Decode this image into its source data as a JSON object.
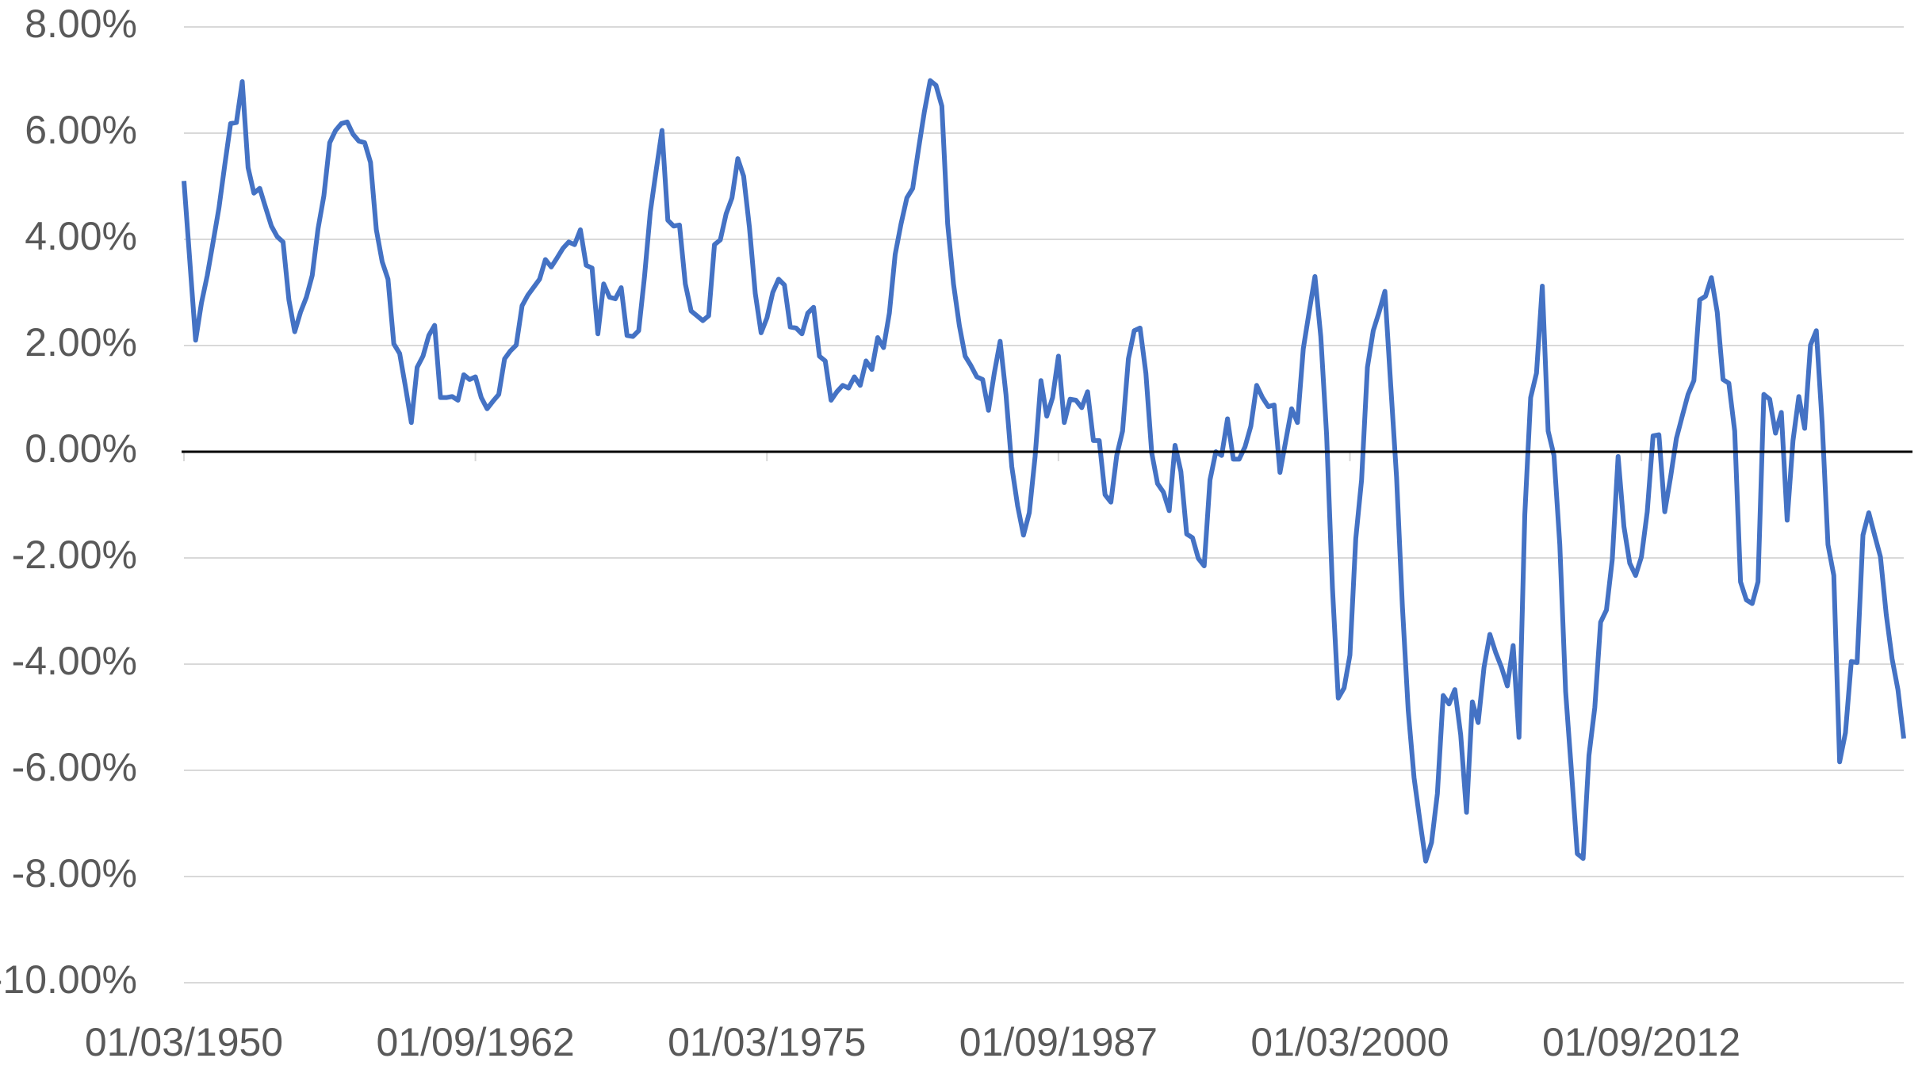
{
  "chart_data": {
    "type": "line",
    "categories": [
      "01/03/1950",
      null,
      null,
      null,
      null,
      null,
      null,
      null,
      null,
      null,
      null,
      null,
      null,
      null,
      null,
      null,
      null,
      null,
      null,
      null,
      null,
      null,
      null,
      null,
      null,
      null,
      null,
      null,
      null,
      null,
      null,
      null,
      null,
      null,
      null,
      null,
      null,
      null,
      null,
      null,
      null,
      null,
      null,
      null,
      null,
      null,
      null,
      null,
      null,
      null,
      "01/09/1962",
      null,
      null,
      null,
      null,
      null,
      null,
      null,
      null,
      null,
      null,
      null,
      null,
      null,
      null,
      null,
      null,
      null,
      null,
      null,
      null,
      null,
      null,
      null,
      null,
      null,
      null,
      null,
      null,
      null,
      null,
      null,
      null,
      null,
      null,
      null,
      null,
      null,
      null,
      null,
      null,
      null,
      null,
      null,
      null,
      null,
      null,
      null,
      null,
      null,
      "01/03/1975",
      null,
      null,
      null,
      null,
      null,
      null,
      null,
      null,
      null,
      null,
      null,
      null,
      null,
      null,
      null,
      null,
      null,
      null,
      null,
      null,
      null,
      null,
      null,
      null,
      null,
      null,
      null,
      null,
      null,
      null,
      null,
      null,
      null,
      null,
      null,
      null,
      null,
      null,
      null,
      null,
      null,
      null,
      null,
      null,
      null,
      null,
      null,
      null,
      null,
      "01/09/1987",
      null,
      null,
      null,
      null,
      null,
      null,
      null,
      null,
      null,
      null,
      null,
      null,
      null,
      null,
      null,
      null,
      null,
      null,
      null,
      null,
      null,
      null,
      null,
      null,
      null,
      null,
      null,
      null,
      null,
      null,
      null,
      null,
      null,
      null,
      null,
      null,
      null,
      null,
      null,
      null,
      null,
      null,
      null,
      null,
      null,
      null,
      null,
      null,
      null,
      "01/03/2000",
      null,
      null,
      null,
      null,
      null,
      null,
      null,
      null,
      null,
      null,
      null,
      null,
      null,
      null,
      null,
      null,
      null,
      null,
      null,
      null,
      null,
      null,
      null,
      null,
      null,
      null,
      null,
      null,
      null,
      null,
      null,
      null,
      null,
      null,
      null,
      null,
      null,
      null,
      null,
      null,
      null,
      null,
      null,
      null,
      null,
      null,
      null,
      null,
      null,
      "01/09/2012",
      null,
      null,
      null,
      null,
      null,
      null,
      null,
      null,
      null,
      null,
      null,
      null,
      null,
      null,
      null,
      null,
      null,
      null,
      null,
      null,
      null,
      null,
      null,
      null,
      null,
      null,
      null,
      null,
      null,
      null,
      null,
      null,
      null,
      null,
      null,
      null,
      null,
      null,
      null,
      null,
      null,
      null,
      null,
      null,
      null
    ],
    "series": [
      {
        "color": "#4472c4",
        "values": [
          5.1,
          3.6,
          2.1,
          2.8,
          3.32,
          3.95,
          4.59,
          5.4,
          6.18,
          6.2,
          6.97,
          5.35,
          4.87,
          4.96,
          4.6,
          4.25,
          4.05,
          3.95,
          2.86,
          2.26,
          2.63,
          2.91,
          3.32,
          4.2,
          4.82,
          5.82,
          6.05,
          6.18,
          6.21,
          5.98,
          5.85,
          5.82,
          5.45,
          4.18,
          3.58,
          3.25,
          2.03,
          1.85,
          1.22,
          0.55,
          1.59,
          1.8,
          2.19,
          2.38,
          1.02,
          1.02,
          1.04,
          0.97,
          1.45,
          1.36,
          1.41,
          1.02,
          0.81,
          0.95,
          1.08,
          1.75,
          1.9,
          2.01,
          2.75,
          2.95,
          3.1,
          3.25,
          3.62,
          3.48,
          3.65,
          3.83,
          3.95,
          3.9,
          4.18,
          3.51,
          3.46,
          2.22,
          3.16,
          2.91,
          2.88,
          3.09,
          2.19,
          2.17,
          2.28,
          3.3,
          4.52,
          5.3,
          6.05,
          4.36,
          4.25,
          4.27,
          3.16,
          2.65,
          2.56,
          2.47,
          2.56,
          3.9,
          3.99,
          4.48,
          4.78,
          5.52,
          5.19,
          4.22,
          2.98,
          2.24,
          2.52,
          3.0,
          3.25,
          3.14,
          2.35,
          2.33,
          2.22,
          2.61,
          2.72,
          1.8,
          1.71,
          0.97,
          1.13,
          1.25,
          1.2,
          1.41,
          1.25,
          1.71,
          1.55,
          2.15,
          1.96,
          2.61,
          3.72,
          4.29,
          4.78,
          4.96,
          5.7,
          6.4,
          6.99,
          6.9,
          6.51,
          4.29,
          3.16,
          2.38,
          1.8,
          1.62,
          1.41,
          1.36,
          0.78,
          1.48,
          2.08,
          1.08,
          -0.28,
          -1.02,
          -1.57,
          -1.15,
          -0.09,
          1.34,
          0.67,
          1.02,
          1.8,
          0.55,
          0.99,
          0.97,
          0.83,
          1.13,
          0.21,
          0.21,
          -0.81,
          -0.95,
          -0.07,
          0.39,
          1.75,
          2.28,
          2.33,
          1.48,
          -0.02,
          -0.6,
          -0.76,
          -1.11,
          0.12,
          -0.37,
          -1.55,
          -1.62,
          -2.01,
          -2.15,
          -0.53,
          0.0,
          -0.07,
          0.62,
          -0.14,
          -0.14,
          0.09,
          0.48,
          1.25,
          1.02,
          0.85,
          0.88,
          -0.39,
          0.21,
          0.81,
          0.55,
          1.94,
          2.63,
          3.3,
          2.17,
          0.32,
          -2.56,
          -4.64,
          -4.45,
          -3.83,
          -1.64,
          -0.53,
          1.59,
          2.28,
          2.63,
          3.02,
          1.25,
          -0.48,
          -2.91,
          -4.87,
          -6.14,
          -6.95,
          -7.71,
          -7.36,
          -6.44,
          -4.59,
          -4.75,
          -4.48,
          -5.33,
          -6.79,
          -4.71,
          -5.1,
          -4.06,
          -3.44,
          -3.78,
          -4.06,
          -4.41,
          -3.65,
          -5.38,
          -1.18,
          1.02,
          1.48,
          3.12,
          0.39,
          -0.07,
          -1.75,
          -4.52,
          -6.02,
          -7.57,
          -7.66,
          -5.72,
          -4.82,
          -3.21,
          -2.98,
          -2.03,
          -0.09,
          -1.41,
          -2.1,
          -2.33,
          -1.98,
          -1.13,
          0.3,
          0.32,
          -1.13,
          -0.48,
          0.25,
          0.67,
          1.08,
          1.34,
          2.86,
          2.93,
          3.28,
          2.63,
          1.36,
          1.29,
          0.39,
          -2.45,
          -2.79,
          -2.86,
          -2.45,
          1.08,
          0.99,
          0.35,
          0.74,
          -1.29,
          0.21,
          1.04,
          0.44,
          2.01,
          2.28,
          0.55,
          -1.75,
          -2.33,
          -5.84,
          -5.29,
          -3.95,
          -3.97,
          -1.57,
          -1.15,
          -1.57,
          -1.98,
          -3.07,
          -3.9,
          -4.48,
          -5.4
        ]
      }
    ],
    "ylim": [
      -10,
      8
    ],
    "yticks": [
      {
        "value": -10,
        "label": "-10.00%"
      },
      {
        "value": -8,
        "label": "-8.00%"
      },
      {
        "value": -6,
        "label": "-6.00%"
      },
      {
        "value": -4,
        "label": "-4.00%"
      },
      {
        "value": -2,
        "label": "-2.00%"
      },
      {
        "value": 0,
        "label": "0.00%"
      },
      {
        "value": 2,
        "label": "2.00%"
      },
      {
        "value": 4,
        "label": "4.00%"
      },
      {
        "value": 6,
        "label": "6.00%"
      },
      {
        "value": 8,
        "label": "8.00%"
      }
    ],
    "grid": true
  }
}
